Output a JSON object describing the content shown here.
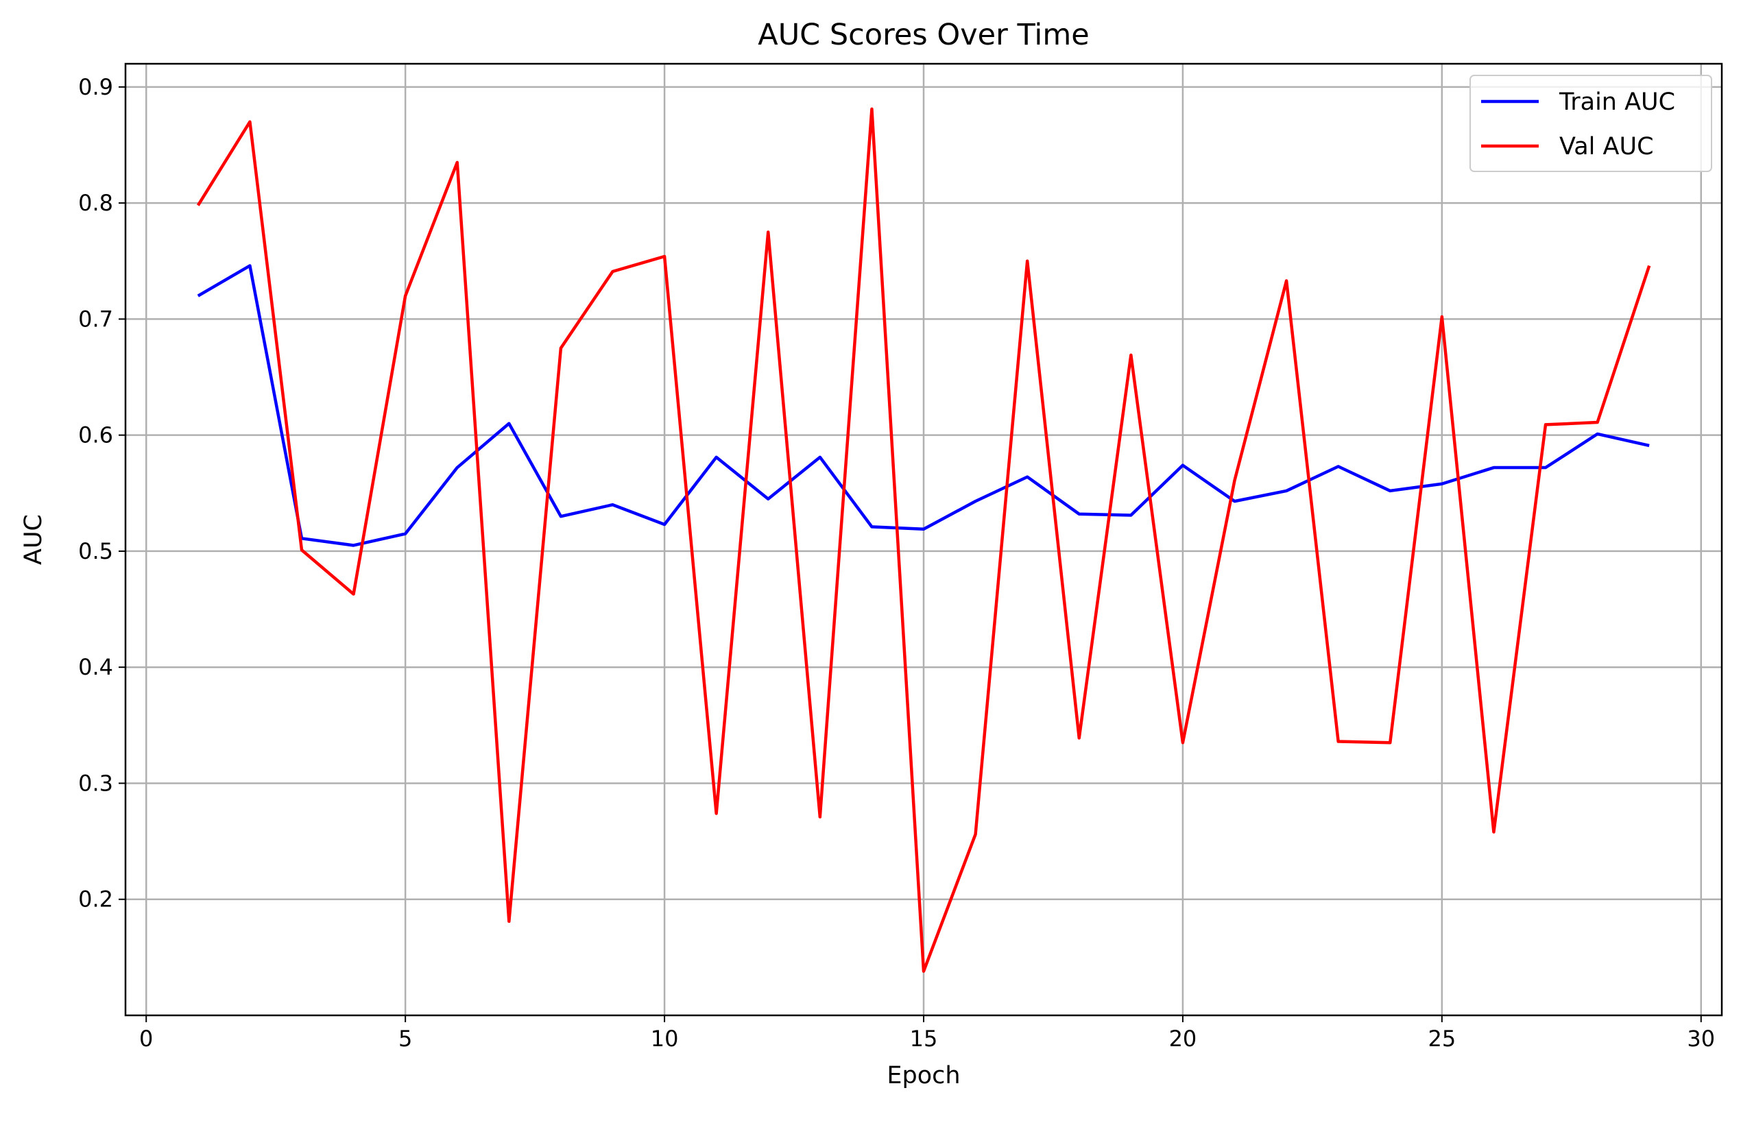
{
  "chart_data": {
    "type": "line",
    "title": "AUC Scores Over Time",
    "xlabel": "Epoch",
    "ylabel": "AUC",
    "xlim": [
      -0.4,
      30.4
    ],
    "ylim": [
      0.1,
      0.92
    ],
    "xticks": [
      0,
      5,
      10,
      15,
      20,
      25,
      30
    ],
    "yticks": [
      0.2,
      0.3,
      0.4,
      0.5,
      0.6,
      0.7,
      0.8,
      0.9
    ],
    "xtick_labels": [
      "0",
      "5",
      "10",
      "15",
      "20",
      "25",
      "30"
    ],
    "ytick_labels": [
      "0.2",
      "0.3",
      "0.4",
      "0.5",
      "0.6",
      "0.7",
      "0.8",
      "0.9"
    ],
    "grid": true,
    "legend_position": "top-right",
    "x": [
      1,
      2,
      3,
      4,
      5,
      6,
      7,
      8,
      9,
      10,
      11,
      12,
      13,
      14,
      15,
      16,
      17,
      18,
      19,
      20,
      21,
      22,
      23,
      24,
      25,
      26,
      27,
      28,
      29
    ],
    "series": [
      {
        "name": "Train AUC",
        "color": "#0000ff",
        "values": [
          0.72,
          0.746,
          0.511,
          0.505,
          0.515,
          0.572,
          0.61,
          0.53,
          0.54,
          0.523,
          0.581,
          0.545,
          0.581,
          0.521,
          0.519,
          0.543,
          0.564,
          0.532,
          0.531,
          0.574,
          0.543,
          0.552,
          0.573,
          0.552,
          0.558,
          0.572,
          0.572,
          0.601,
          0.591
        ]
      },
      {
        "name": "Val AUC",
        "color": "#ff0000",
        "values": [
          0.798,
          0.87,
          0.501,
          0.463,
          0.72,
          0.835,
          0.181,
          0.675,
          0.741,
          0.754,
          0.274,
          0.775,
          0.271,
          0.881,
          0.138,
          0.256,
          0.75,
          0.339,
          0.669,
          0.335,
          0.561,
          0.733,
          0.336,
          0.335,
          0.702,
          0.258,
          0.609,
          0.611,
          0.746
        ]
      }
    ]
  }
}
